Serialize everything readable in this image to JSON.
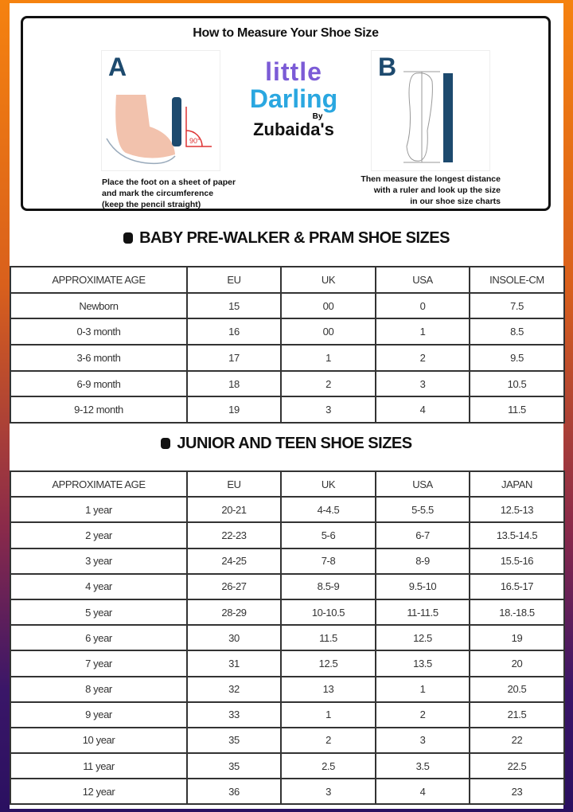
{
  "measure": {
    "title": "How to Measure Your Shoe Size",
    "step_a": {
      "letter": "A",
      "angle_label": "90°",
      "caption": [
        "Place the foot on a sheet of paper",
        "and mark the circumference",
        "(keep the pencil straight)"
      ]
    },
    "step_b": {
      "letter": "B",
      "caption": [
        "Then measure the longest distance",
        "with a ruler and look up the size",
        "in our shoe size charts"
      ]
    },
    "logo": {
      "line1": "little",
      "line2": "Darling",
      "by": "By",
      "brand": "Zubaida's"
    }
  },
  "baby_table": {
    "title": "BABY PRE-WALKER & PRAM SHOE SIZES",
    "headers": [
      "APPROXIMATE AGE",
      "EU",
      "UK",
      "USA",
      "INSOLE-CM"
    ],
    "rows": [
      [
        "Newborn",
        "15",
        "00",
        "0",
        "7.5"
      ],
      [
        "0-3 month",
        "16",
        "00",
        "1",
        "8.5"
      ],
      [
        "3-6 month",
        "17",
        "1",
        "2",
        "9.5"
      ],
      [
        "6-9 month",
        "18",
        "2",
        "3",
        "10.5"
      ],
      [
        "9-12 month",
        "19",
        "3",
        "4",
        "11.5"
      ]
    ]
  },
  "junior_table": {
    "title": "JUNIOR AND TEEN SHOE SIZES",
    "headers": [
      "APPROXIMATE AGE",
      "EU",
      "UK",
      "USA",
      "JAPAN"
    ],
    "rows": [
      [
        "1 year",
        "20-21",
        "4-4.5",
        "5-5.5",
        "12.5-13"
      ],
      [
        "2 year",
        "22-23",
        "5-6",
        "6-7",
        "13.5-14.5"
      ],
      [
        "3 year",
        "24-25",
        "7-8",
        "8-9",
        "15.5-16"
      ],
      [
        "4 year",
        "26-27",
        "8.5-9",
        "9.5-10",
        "16.5-17"
      ],
      [
        "5 year",
        "28-29",
        "10-10.5",
        "11-11.5",
        "18.-18.5"
      ],
      [
        "6 year",
        "30",
        "11.5",
        "12.5",
        "19"
      ],
      [
        "7 year",
        "31",
        "12.5",
        "13.5",
        "20"
      ],
      [
        "8 year",
        "32",
        "13",
        "1",
        "20.5"
      ],
      [
        "9 year",
        "33",
        "1",
        "2",
        "21.5"
      ],
      [
        "10 year",
        "35",
        "2",
        "3",
        "22"
      ],
      [
        "11 year",
        "35",
        "2.5",
        "3.5",
        "22.5"
      ],
      [
        "12 year",
        "36",
        "3",
        "4",
        "23"
      ]
    ]
  },
  "colors": {
    "gradient_top": "#f5820f",
    "gradient_bottom": "#2a1060",
    "letter_blue": "#1d4a6e"
  }
}
